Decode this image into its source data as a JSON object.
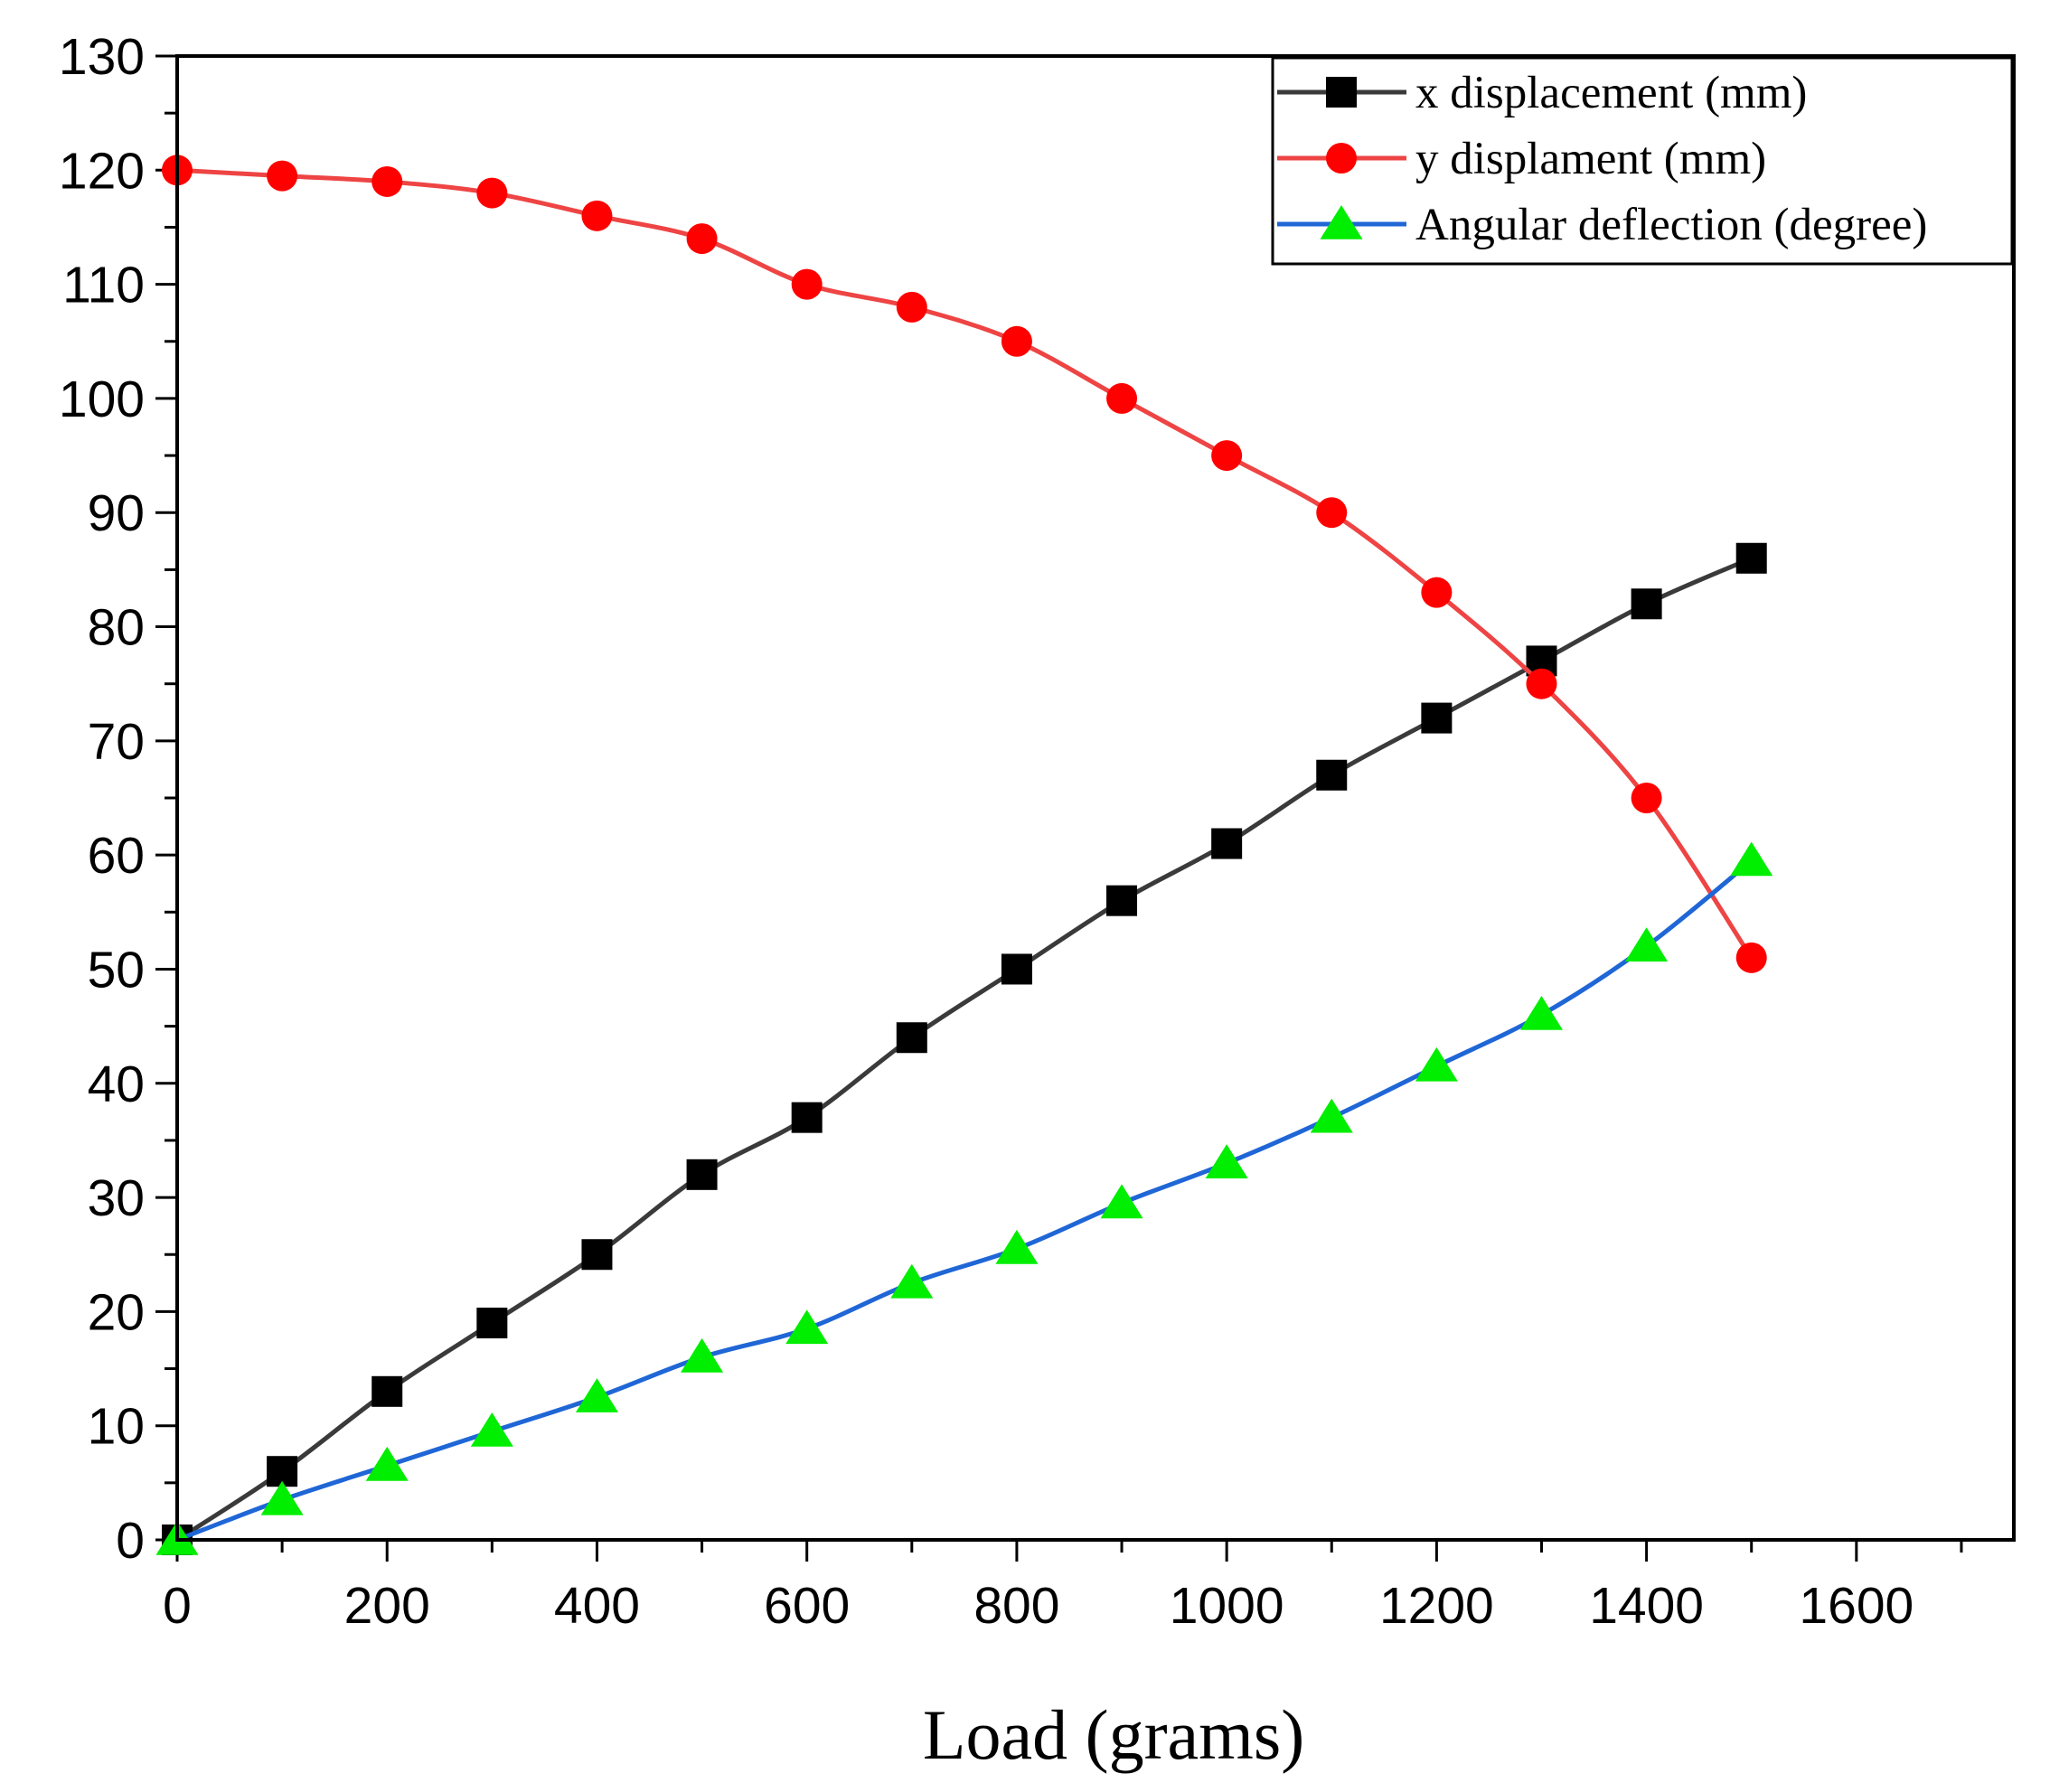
{
  "chart_data": {
    "type": "line",
    "title": "",
    "xlabel": "Load (grams)",
    "ylabel": "",
    "xlim": [
      0,
      1750
    ],
    "ylim": [
      0,
      130
    ],
    "xticks": [
      0,
      200,
      400,
      600,
      800,
      1000,
      1200,
      1400,
      1600
    ],
    "yticks": [
      0,
      10,
      20,
      30,
      40,
      50,
      60,
      70,
      80,
      90,
      100,
      110,
      120,
      130
    ],
    "x_minor_step": 100,
    "y_minor_step": 5,
    "grid": false,
    "legend_position": "top-right",
    "x": [
      0,
      100,
      200,
      300,
      400,
      500,
      600,
      700,
      800,
      900,
      1000,
      1100,
      1200,
      1300,
      1400,
      1500
    ],
    "series": [
      {
        "name": "x displacement (mm)",
        "marker": "square",
        "line_color": "#3a3a3a",
        "marker_color": "#000000",
        "values": [
          0,
          6,
          13,
          19,
          25,
          32,
          37,
          44,
          50,
          56,
          61,
          67,
          72,
          77,
          82,
          86
        ]
      },
      {
        "name": "y displament (mm)",
        "marker": "circle",
        "line_color": "#ee4444",
        "marker_color": "#ff0000",
        "values": [
          120,
          119.5,
          119,
          118,
          116,
          114,
          110,
          108,
          105,
          100,
          95,
          90,
          83,
          75,
          65,
          51
        ]
      },
      {
        "name": "Angular deflection (degree)",
        "marker": "triangle",
        "line_color": "#1f66d6",
        "marker_color": "#00ee00",
        "values": [
          0,
          3.5,
          6.5,
          9.5,
          12.5,
          16,
          18.5,
          22.5,
          25.5,
          29.5,
          33,
          37,
          41.5,
          46,
          52,
          59.5
        ]
      }
    ]
  }
}
